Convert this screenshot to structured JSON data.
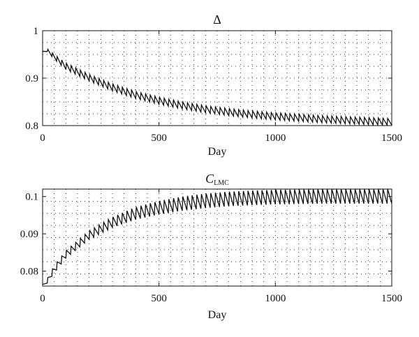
{
  "chart_data": [
    {
      "type": "line",
      "title": "Δ",
      "xlabel": "Day",
      "ylabel": "",
      "xlim": [
        0,
        1500
      ],
      "ylim": [
        0.8,
        1.0
      ],
      "xticks": [
        0,
        500,
        1000,
        1500
      ],
      "xtick_labels": [
        "0",
        "500",
        "1000",
        "1500"
      ],
      "yticks": [
        0.8,
        0.9,
        1.0
      ],
      "ytick_labels": [
        "0.8",
        "0.9",
        "1"
      ],
      "grid": true,
      "series": [
        {
          "pattern": "sawtooth",
          "period_days": 20,
          "upper_envelope": {
            "x": [
              0,
              10,
              20,
              50,
              100,
              200,
              300,
              400,
              500,
              600,
              700,
              800,
              900,
              1000,
              1100,
              1200,
              1300,
              1400,
              1500
            ],
            "y": [
              0.955,
              0.962,
              0.962,
              0.95,
              0.932,
              0.908,
              0.888,
              0.872,
              0.86,
              0.85,
              0.842,
              0.836,
              0.831,
              0.827,
              0.824,
              0.821,
              0.819,
              0.817,
              0.815
            ]
          },
          "lower_envelope": {
            "x": [
              0,
              10,
              20,
              50,
              100,
              200,
              300,
              400,
              500,
              600,
              700,
              800,
              900,
              1000,
              1100,
              1200,
              1300,
              1400,
              1500
            ],
            "y": [
              0.955,
              0.958,
              0.956,
              0.94,
              0.918,
              0.894,
              0.873,
              0.857,
              0.845,
              0.835,
              0.827,
              0.821,
              0.816,
              0.812,
              0.809,
              0.806,
              0.804,
              0.802,
              0.801
            ]
          }
        }
      ]
    },
    {
      "type": "line",
      "title": "C",
      "title_subscript": "LMC",
      "xlabel": "Day",
      "ylabel": "",
      "xlim": [
        0,
        1500
      ],
      "ylim": [
        0.076,
        0.102
      ],
      "xticks": [
        0,
        500,
        1000,
        1500
      ],
      "xtick_labels": [
        "0",
        "500",
        "1000",
        "1500"
      ],
      "yticks": [
        0.08,
        0.09,
        0.1
      ],
      "ytick_labels": [
        "0.08",
        "0.09",
        "0.1"
      ],
      "grid": true,
      "series": [
        {
          "pattern": "sawtooth",
          "period_days": 20,
          "upper_envelope": {
            "x": [
              0,
              10,
              20,
              50,
              100,
              200,
              300,
              400,
              500,
              600,
              700,
              800,
              900,
              1000,
              1100,
              1200,
              1300,
              1400,
              1500
            ],
            "y": [
              0.0765,
              0.0765,
              0.078,
              0.0815,
              0.0855,
              0.0908,
              0.0945,
              0.0972,
              0.0988,
              0.1,
              0.1008,
              0.1013,
              0.1016,
              0.1018,
              0.1019,
              0.102,
              0.102,
              0.102,
              0.102
            ]
          },
          "lower_envelope": {
            "x": [
              0,
              10,
              20,
              50,
              100,
              200,
              300,
              400,
              500,
              600,
              700,
              800,
              900,
              1000,
              1100,
              1200,
              1300,
              1400,
              1500
            ],
            "y": [
              0.0765,
              0.0762,
              0.0768,
              0.0795,
              0.0835,
              0.0885,
              0.0917,
              0.0938,
              0.0952,
              0.0962,
              0.0969,
              0.0974,
              0.0977,
              0.0979,
              0.098,
              0.0981,
              0.0981,
              0.0981,
              0.0981
            ]
          }
        }
      ]
    }
  ]
}
